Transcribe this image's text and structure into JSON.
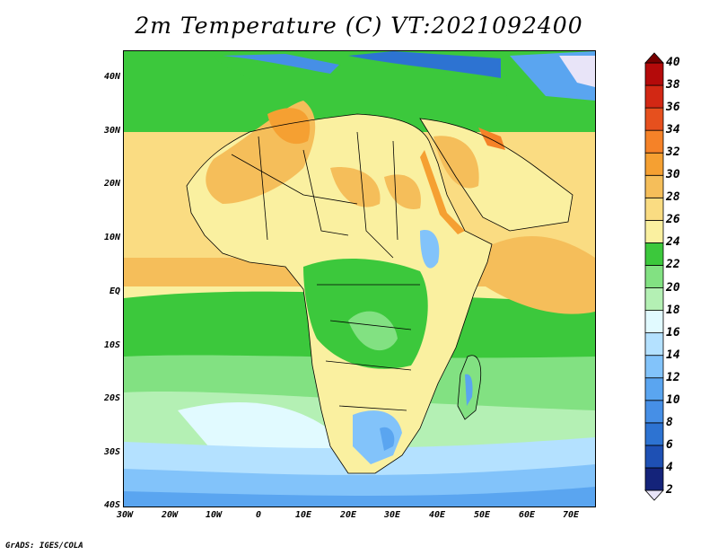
{
  "title": "2m Temperature (C) VT:2021092400",
  "map": {
    "latitude_labels": [
      "40N",
      "30N",
      "20N",
      "10N",
      "EQ",
      "10S",
      "20S",
      "30S",
      "40S"
    ],
    "longitude_labels": [
      "30W",
      "20W",
      "10W",
      "0",
      "10E",
      "20E",
      "30E",
      "40E",
      "50E",
      "60E",
      "70E"
    ]
  },
  "colorbar": {
    "levels": [
      "2",
      "4",
      "6",
      "8",
      "10",
      "12",
      "14",
      "16",
      "18",
      "20",
      "22",
      "24",
      "26",
      "28",
      "30",
      "32",
      "34",
      "36",
      "38",
      "40"
    ],
    "colors": [
      "#e8e4f8",
      "#14237a",
      "#1e50b4",
      "#2d73d2",
      "#468fe6",
      "#5aa5f0",
      "#82c3fa",
      "#b4e1ff",
      "#e1faff",
      "#b4f0b4",
      "#82e182",
      "#3cc83c",
      "#faf0a0",
      "#fadc82",
      "#f5be5a",
      "#f5a032",
      "#f58228",
      "#e6501e",
      "#d22814",
      "#b40a0a",
      "#780000"
    ]
  },
  "footer": "GrADS: IGES/COLA"
}
